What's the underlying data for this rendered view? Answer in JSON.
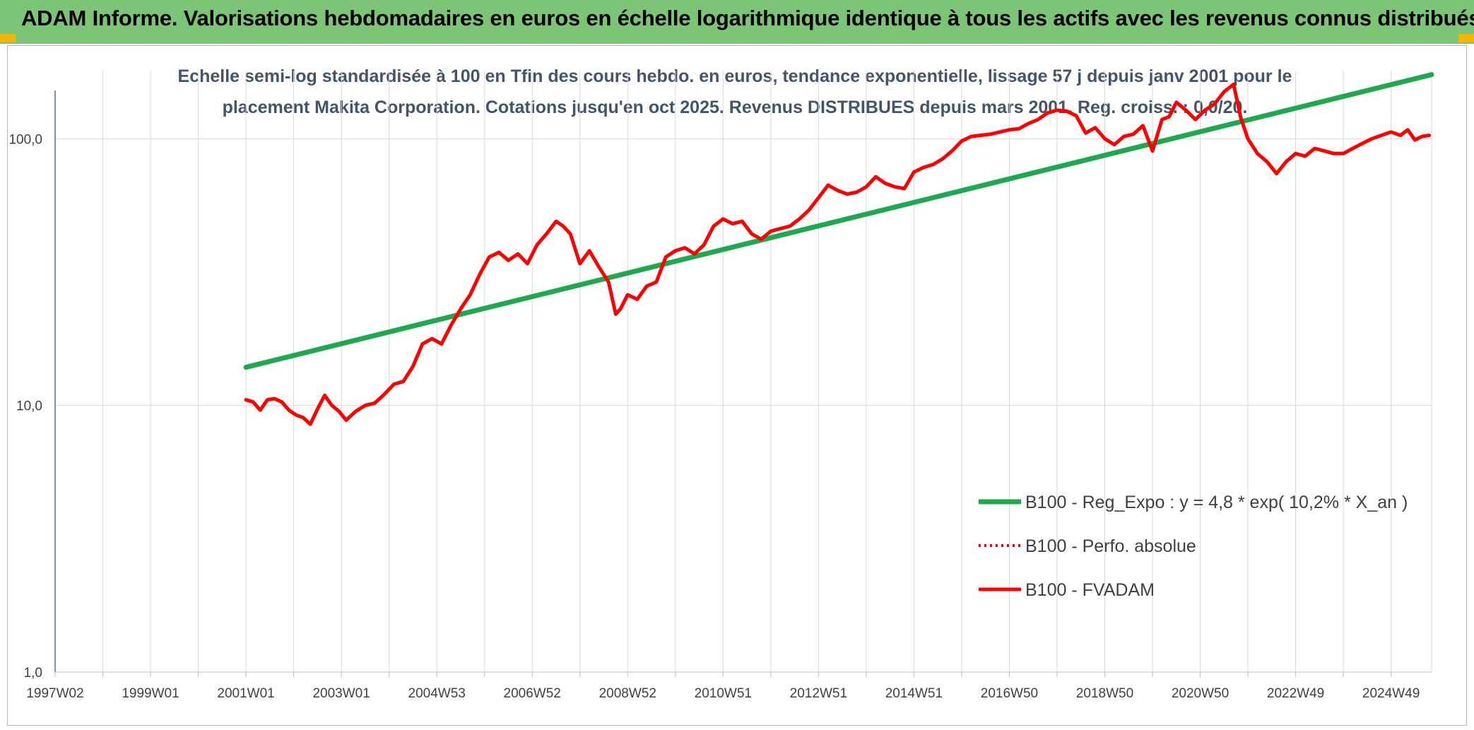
{
  "title": "ADAM Informe. Valorisations hebdomadaires en euros en échelle logarithmique identique à tous les actifs avec les revenus connus distribués",
  "subtitle_line1": "Echelle semi-log standardisée à 100 en Tfin des cours hebdo. en euros, tendance exponentielle, lissage 57 j depuis janv 2001 pour le",
  "subtitle_line2": "placement Makita Corporation. Cotations jusqu'en oct 2025. Revenus DISTRIBUES depuis mars 2001. Reg. croiss. : 0,0/20.",
  "colors": {
    "header": "#7cc576",
    "corner": "#f2b600",
    "trend": "#1ea84f",
    "fvadam": "#ff0000",
    "perf": "#ff0000",
    "grid": "#d9d9d9",
    "axis": "#4472c4"
  },
  "chart_data": {
    "type": "line",
    "yscale": "log",
    "ylim": [
      1,
      180
    ],
    "xlim": [
      1997.0,
      2025.85
    ],
    "y_ticks": [
      {
        "value": 1,
        "label": "1,0"
      },
      {
        "value": 10,
        "label": "10,0"
      },
      {
        "value": 100,
        "label": "100,0"
      }
    ],
    "x_ticks": [
      {
        "x": 1997.0,
        "label": "1997W02"
      },
      {
        "x": 1998.0,
        "label": ""
      },
      {
        "x": 1999.0,
        "label": "1999W01"
      },
      {
        "x": 2000.0,
        "label": ""
      },
      {
        "x": 2001.0,
        "label": "2001W01"
      },
      {
        "x": 2002.0,
        "label": ""
      },
      {
        "x": 2003.0,
        "label": "2003W01"
      },
      {
        "x": 2004.0,
        "label": ""
      },
      {
        "x": 2005.0,
        "label": "2004W53"
      },
      {
        "x": 2006.0,
        "label": ""
      },
      {
        "x": 2007.0,
        "label": "2006W52"
      },
      {
        "x": 2008.0,
        "label": ""
      },
      {
        "x": 2009.0,
        "label": "2008W52"
      },
      {
        "x": 2010.0,
        "label": ""
      },
      {
        "x": 2011.0,
        "label": "2010W51"
      },
      {
        "x": 2012.0,
        "label": ""
      },
      {
        "x": 2013.0,
        "label": "2012W51"
      },
      {
        "x": 2014.0,
        "label": ""
      },
      {
        "x": 2015.0,
        "label": "2014W51"
      },
      {
        "x": 2016.0,
        "label": ""
      },
      {
        "x": 2017.0,
        "label": "2016W50"
      },
      {
        "x": 2018.0,
        "label": ""
      },
      {
        "x": 2019.0,
        "label": "2018W50"
      },
      {
        "x": 2020.0,
        "label": ""
      },
      {
        "x": 2021.0,
        "label": "2020W50"
      },
      {
        "x": 2022.0,
        "label": ""
      },
      {
        "x": 2023.0,
        "label": "2022W49"
      },
      {
        "x": 2024.0,
        "label": ""
      },
      {
        "x": 2025.0,
        "label": "2024W49"
      }
    ],
    "legend_position": "bottom-right",
    "series": [
      {
        "name": "B100 - Reg_Expo : y = 4,8 * exp( 10,2% *  X_an )",
        "style": "solid-thick",
        "color": "#1ea84f",
        "x": [
          2001.0,
          2025.85
        ],
        "y": [
          13.9,
          174
        ]
      },
      {
        "name": "B100 - Perfo. absolue",
        "style": "dotted",
        "color": "#ff0000",
        "x": [],
        "y": []
      },
      {
        "name": "B100 - FVADAM",
        "style": "solid",
        "color": "#ff0000",
        "x": [
          2001.0,
          2001.15,
          2001.3,
          2001.45,
          2001.6,
          2001.75,
          2001.9,
          2002.05,
          2002.2,
          2002.35,
          2002.5,
          2002.65,
          2002.8,
          2002.95,
          2003.1,
          2003.3,
          2003.5,
          2003.7,
          2003.9,
          2004.1,
          2004.3,
          2004.5,
          2004.7,
          2004.9,
          2005.1,
          2005.3,
          2005.5,
          2005.7,
          2005.9,
          2006.1,
          2006.3,
          2006.5,
          2006.7,
          2006.9,
          2007.1,
          2007.3,
          2007.5,
          2007.65,
          2007.8,
          2008.0,
          2008.2,
          2008.4,
          2008.6,
          2008.75,
          2008.85,
          2009.0,
          2009.2,
          2009.4,
          2009.6,
          2009.8,
          2010.0,
          2010.2,
          2010.4,
          2010.6,
          2010.8,
          2011.0,
          2011.2,
          2011.4,
          2011.6,
          2011.8,
          2012.0,
          2012.2,
          2012.4,
          2012.6,
          2012.8,
          2013.0,
          2013.2,
          2013.4,
          2013.6,
          2013.8,
          2014.0,
          2014.2,
          2014.4,
          2014.6,
          2014.8,
          2015.0,
          2015.2,
          2015.4,
          2015.6,
          2015.8,
          2016.0,
          2016.2,
          2016.4,
          2016.6,
          2016.8,
          2017.0,
          2017.2,
          2017.4,
          2017.6,
          2017.8,
          2018.0,
          2018.2,
          2018.4,
          2018.6,
          2018.8,
          2019.0,
          2019.2,
          2019.4,
          2019.6,
          2019.8,
          2020.0,
          2020.2,
          2020.35,
          2020.5,
          2020.7,
          2020.9,
          2021.1,
          2021.3,
          2021.5,
          2021.7,
          2021.85,
          2022.0,
          2022.2,
          2022.4,
          2022.6,
          2022.8,
          2023.0,
          2023.2,
          2023.4,
          2023.6,
          2023.8,
          2024.0,
          2024.2,
          2024.4,
          2024.6,
          2024.8,
          2025.0,
          2025.2,
          2025.35,
          2025.5,
          2025.65,
          2025.8
        ],
        "y": [
          10.5,
          10.3,
          9.6,
          10.5,
          10.6,
          10.3,
          9.6,
          9.2,
          9.0,
          8.5,
          9.7,
          10.9,
          10.0,
          9.5,
          8.8,
          9.5,
          10.0,
          10.2,
          11.0,
          12.0,
          12.3,
          14.0,
          17.0,
          17.8,
          17.0,
          20.0,
          23.0,
          26.0,
          31.0,
          36.0,
          37.5,
          35.0,
          37.0,
          34.0,
          40.0,
          44.0,
          49.0,
          47.0,
          44.0,
          34.0,
          38.0,
          33.0,
          29.0,
          22.0,
          23.0,
          26.0,
          25.0,
          28.0,
          29.0,
          36.0,
          38.0,
          39.0,
          37.0,
          40.0,
          47.0,
          50.0,
          48.0,
          49.0,
          44.0,
          42.0,
          45.0,
          46.0,
          47.0,
          50.0,
          54.0,
          60.0,
          67.0,
          64.0,
          62.0,
          63.0,
          66.0,
          72.0,
          68.0,
          66.0,
          65.0,
          75.0,
          78.0,
          80.0,
          84.0,
          90.0,
          98.0,
          102.0,
          103.0,
          104.0,
          106.0,
          108.0,
          109.0,
          114.0,
          118.0,
          125.0,
          128.0,
          127.0,
          122.0,
          105.0,
          110.0,
          100.0,
          95.0,
          102.0,
          104.0,
          112.0,
          90.0,
          118.0,
          121.0,
          137.0,
          128.0,
          118.0,
          128.0,
          135.0,
          150.0,
          160.0,
          120.0,
          100.0,
          88.0,
          82.0,
          74.0,
          82.0,
          88.0,
          86.0,
          92.0,
          90.0,
          88.0,
          88.0,
          92.0,
          96.0,
          100.0,
          103.0,
          106.0,
          103.0,
          108.0,
          99.0,
          102.0,
          103.0
        ]
      }
    ]
  }
}
